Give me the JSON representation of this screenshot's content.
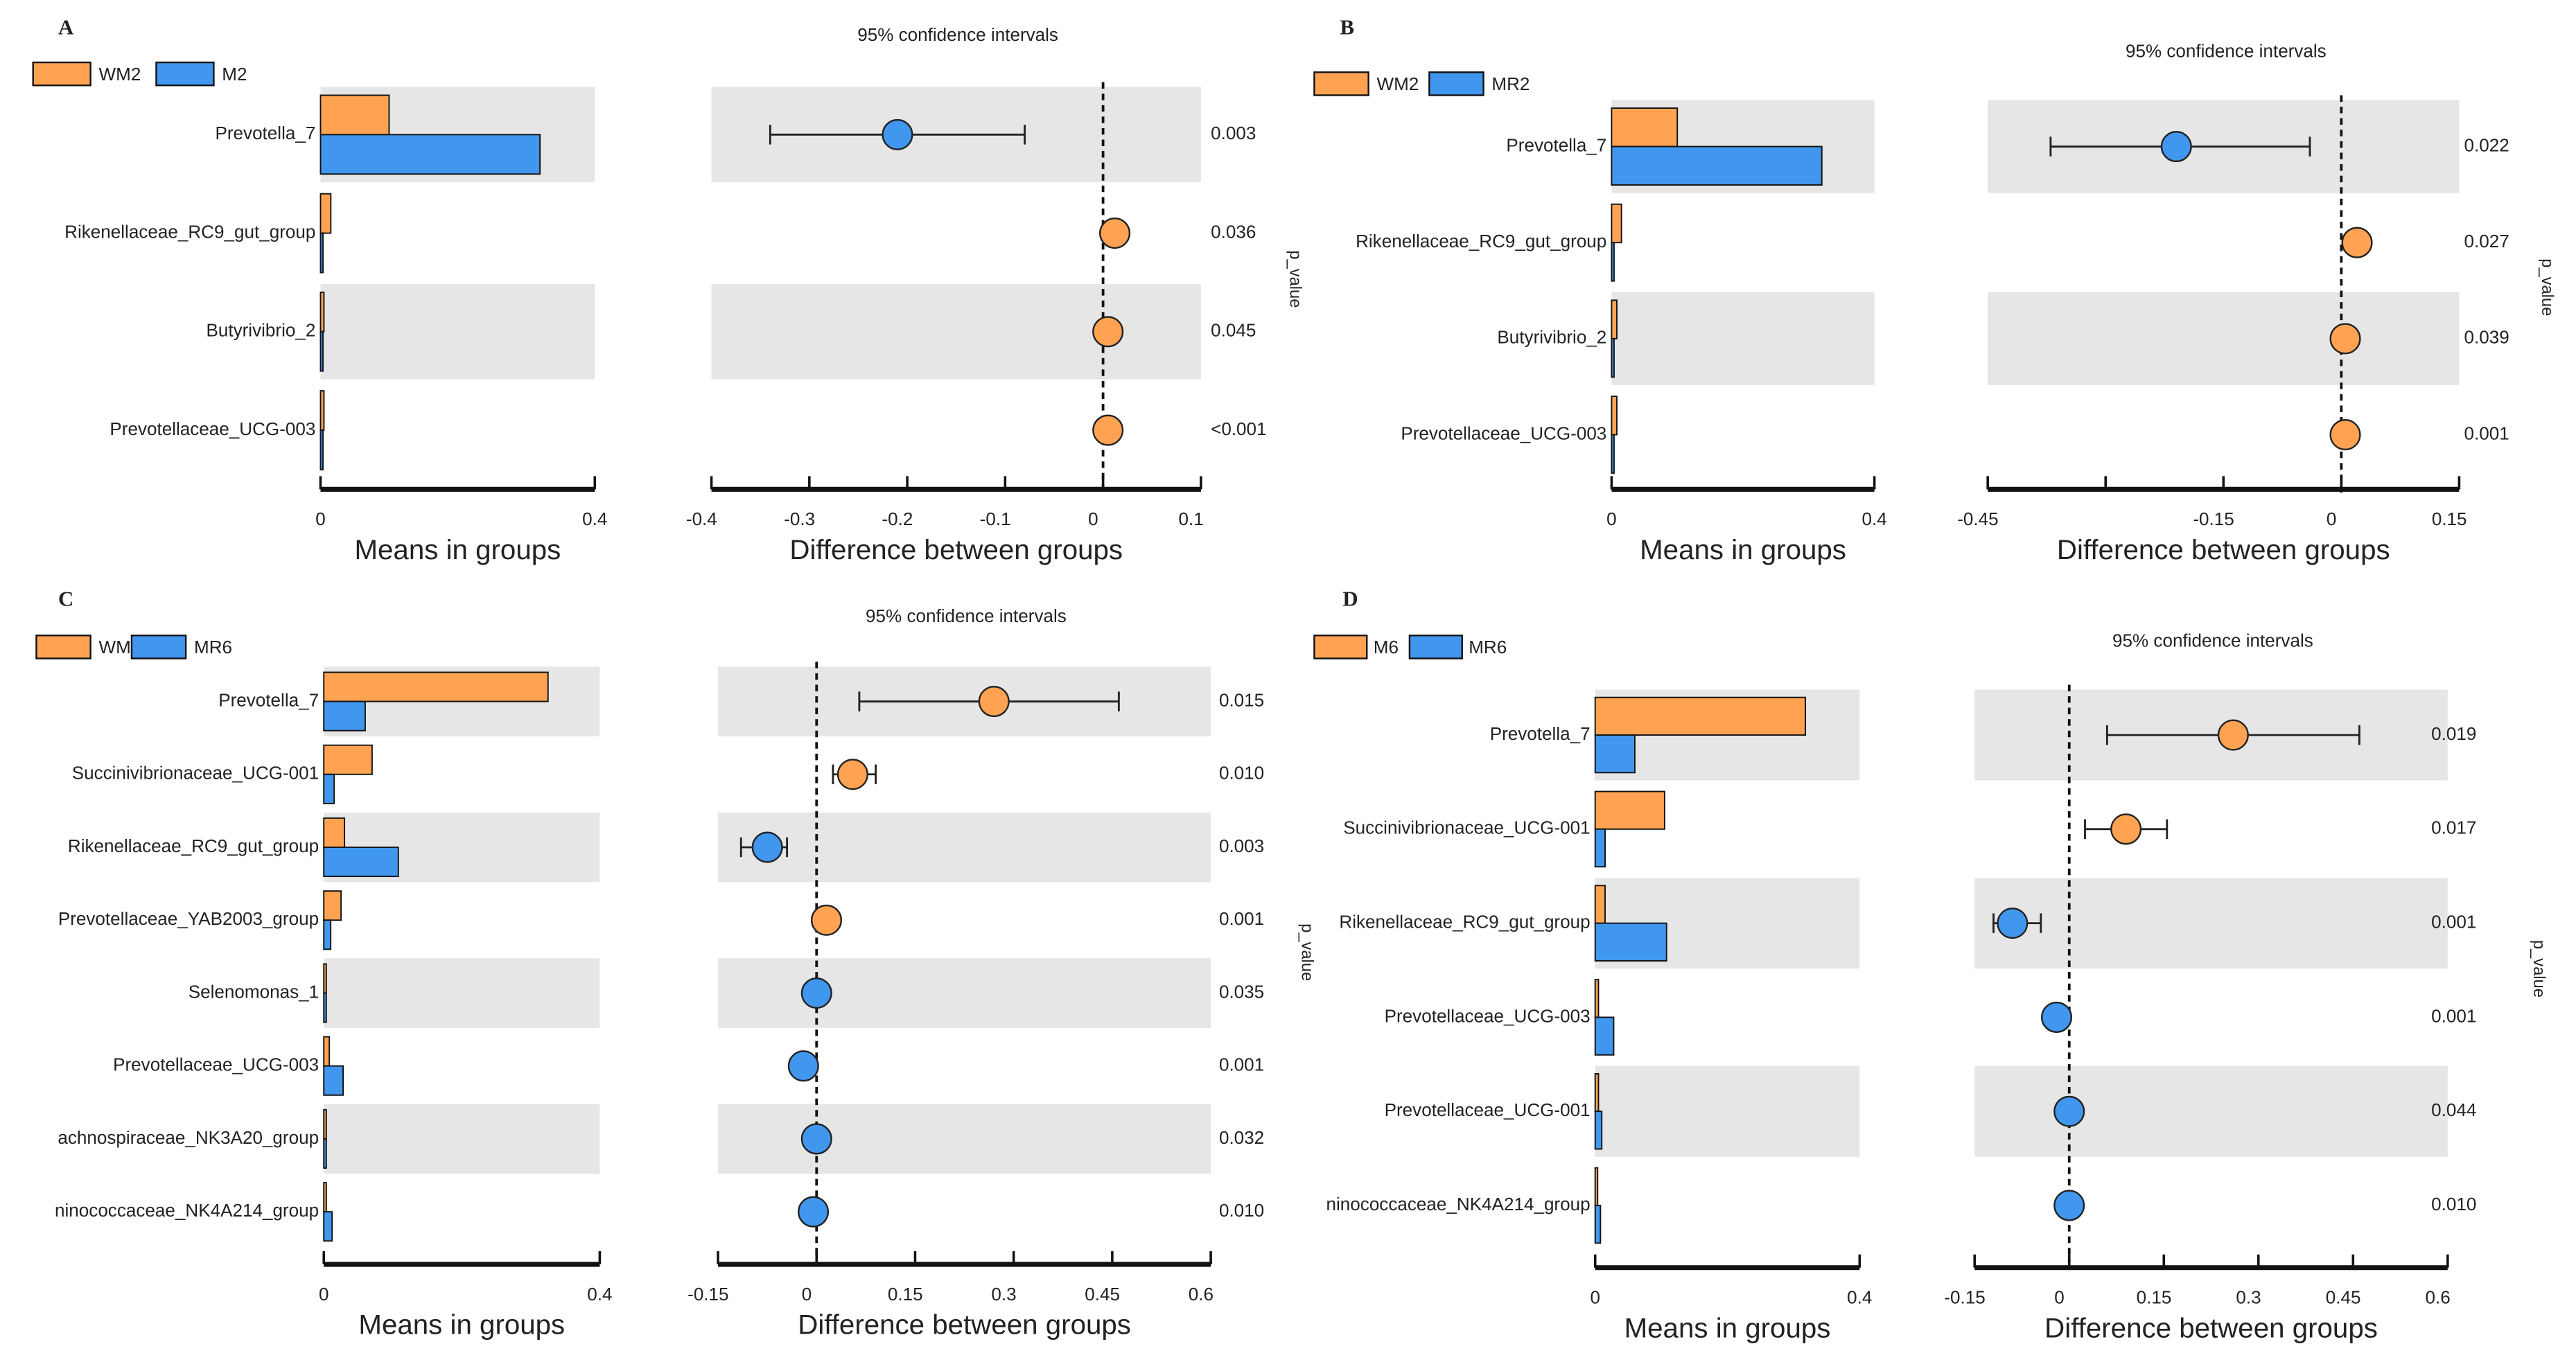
{
  "colors": {
    "group1": "#FFA352",
    "group2": "#4196EE",
    "band": "#E6E6E6",
    "stroke": "#111111"
  },
  "chart_data": [
    {
      "panel": "A",
      "type": "bar+errorbar",
      "legend": [
        "WM2",
        "M2"
      ],
      "categories": [
        "Prevotella_7",
        "Rikenellaceae_RC9_gut_group",
        "Butyrivibrio_2",
        "Prevotellaceae_UCG-003"
      ],
      "means": {
        "WM2": [
          0.1,
          0.015,
          0.005,
          0.005
        ],
        "M2": [
          0.32,
          0.002,
          0.001,
          0.001
        ]
      },
      "means_xlim": [
        0,
        0.4
      ],
      "means_ticks": [
        "0",
        "0.4"
      ],
      "means_tick_values": [
        0,
        0.4
      ],
      "means_xlabel": "Means in groups",
      "ci_title": "95% confidence intervals",
      "diff": [
        -0.21,
        0.012,
        0.005,
        0.005
      ],
      "ci_low": [
        -0.34,
        0.005,
        0.0,
        0.0
      ],
      "ci_high": [
        -0.08,
        0.02,
        0.01,
        0.01
      ],
      "diff_group": [
        2,
        1,
        1,
        1
      ],
      "diff_xlim": [
        -0.4,
        0.1
      ],
      "diff_ticks": [
        "-0.4",
        "-0.3",
        "-0.2",
        "-0.1",
        "0",
        "0.1"
      ],
      "diff_tick_values": [
        -0.4,
        -0.3,
        -0.2,
        -0.1,
        0,
        0.1
      ],
      "diff_xlabel": "Difference between groups",
      "p_values": [
        "0.003",
        "0.036",
        "0.045",
        "<0.001"
      ],
      "p_label": "p_value"
    },
    {
      "panel": "B",
      "type": "bar+errorbar",
      "legend": [
        "WM2",
        "MR2"
      ],
      "categories": [
        "Prevotella_7",
        "Rikenellaceae_RC9_gut_group",
        "Butyrivibrio_2",
        "Prevotellaceae_UCG-003"
      ],
      "means": {
        "WM2": [
          0.1,
          0.015,
          0.008,
          0.008
        ],
        "MR2": [
          0.32,
          0.003,
          0.003,
          0.003
        ]
      },
      "means_xlim": [
        0,
        0.4
      ],
      "means_ticks": [
        "0",
        "0.4"
      ],
      "means_tick_values": [
        0,
        0.4
      ],
      "means_xlabel": "Means in groups",
      "ci_title": "95% confidence intervals",
      "diff": [
        -0.21,
        0.02,
        0.005,
        0.005
      ],
      "ci_low": [
        -0.37,
        0.01,
        0.0,
        0.0
      ],
      "ci_high": [
        -0.04,
        0.03,
        0.01,
        0.01
      ],
      "diff_group": [
        2,
        1,
        1,
        1
      ],
      "diff_xlim": [
        -0.45,
        0.15
      ],
      "diff_ticks": [
        "-0.45",
        "-0.3",
        "-0.15",
        "0",
        "0.15"
      ],
      "diff_tick_values": [
        -0.45,
        -0.3,
        -0.15,
        0,
        0.15
      ],
      "diff_tick_shown": [
        "-0.45",
        "-0.15",
        "0",
        "0.15"
      ],
      "diff_xlabel": "Difference between groups",
      "p_values": [
        "0.022",
        "0.027",
        "0.039",
        "0.001"
      ],
      "p_label": "p_value"
    },
    {
      "panel": "C",
      "type": "bar+errorbar",
      "legend": [
        "WM6",
        "MR6"
      ],
      "categories": [
        "Prevotella_7",
        "Succinivibrionaceae_UCG-001",
        "Rikenellaceae_RC9_gut_group",
        "Prevotellaceae_YAB2003_group",
        "Selenomonas_1",
        "Prevotellaceae_UCG-003",
        "achnospiraceae_NK3A20_group",
        "ninococcaceae_NK4A214_group"
      ],
      "means": {
        "WM6": [
          0.325,
          0.07,
          0.03,
          0.025,
          0.002,
          0.008,
          0.002,
          0.002
        ],
        "MR6": [
          0.06,
          0.015,
          0.108,
          0.01,
          0.001,
          0.028,
          0.003,
          0.012
        ]
      },
      "means_xlim": [
        0,
        0.4
      ],
      "means_ticks": [
        "0",
        "0.4"
      ],
      "means_tick_values": [
        0,
        0.4
      ],
      "means_xlabel": "Means in groups",
      "ci_title": "95% confidence intervals",
      "diff": [
        0.27,
        0.055,
        -0.075,
        0.015,
        0.0,
        -0.02,
        0.0,
        -0.005
      ],
      "ci_low": [
        0.065,
        0.025,
        -0.115,
        0.005,
        -0.005,
        -0.025,
        -0.005,
        -0.01
      ],
      "ci_high": [
        0.46,
        0.09,
        -0.045,
        0.02,
        0.01,
        -0.005,
        0.01,
        0.01
      ],
      "diff_group": [
        1,
        1,
        2,
        1,
        2,
        2,
        2,
        2
      ],
      "diff_xlim": [
        -0.15,
        0.6
      ],
      "diff_ticks": [
        "-0.15",
        "0",
        "0.15",
        "0.3",
        "0.45",
        "0.6"
      ],
      "diff_tick_values": [
        -0.15,
        0,
        0.15,
        0.3,
        0.45,
        0.6
      ],
      "diff_xlabel": "Difference between groups",
      "p_values": [
        "0.015",
        "0.010",
        "0.003",
        "0.001",
        "0.035",
        "0.001",
        "0.032",
        "0.010"
      ],
      "p_label": "p_value"
    },
    {
      "panel": "D",
      "type": "bar+errorbar",
      "legend": [
        "M6",
        "MR6"
      ],
      "categories": [
        "Prevotella_7",
        "Succinivibrionaceae_UCG-001",
        "Rikenellaceae_RC9_gut_group",
        "Prevotellaceae_UCG-003",
        "Prevotellaceae_UCG-001",
        "ninococcaceae_NK4A214_group"
      ],
      "means": {
        "M6": [
          0.318,
          0.105,
          0.015,
          0.005,
          0.005,
          0.002
        ],
        "MR6": [
          0.06,
          0.015,
          0.108,
          0.028,
          0.01,
          0.008
        ]
      },
      "means_xlim": [
        0,
        0.4
      ],
      "means_ticks": [
        "0",
        "0.4"
      ],
      "means_tick_values": [
        0,
        0.4
      ],
      "means_xlabel": "Means in groups",
      "ci_title": "95% confidence intervals",
      "diff": [
        0.26,
        0.09,
        -0.09,
        -0.02,
        0.0,
        0.0
      ],
      "ci_low": [
        0.06,
        0.025,
        -0.12,
        -0.025,
        -0.005,
        -0.005
      ],
      "ci_high": [
        0.46,
        0.155,
        -0.045,
        -0.005,
        0.01,
        0.01
      ],
      "diff_group": [
        1,
        1,
        2,
        2,
        2,
        2
      ],
      "diff_xlim": [
        -0.15,
        0.6
      ],
      "diff_ticks": [
        "-0.15",
        "0",
        "0.15",
        "0.3",
        "0.45",
        "0.6"
      ],
      "diff_tick_values": [
        -0.15,
        0,
        0.15,
        0.3,
        0.45,
        0.6
      ],
      "diff_xlabel": "Difference between groups",
      "p_values": [
        "0.019",
        "0.017",
        "0.001",
        "0.001",
        "0.044",
        "0.010"
      ],
      "p_label": "p_value"
    }
  ]
}
